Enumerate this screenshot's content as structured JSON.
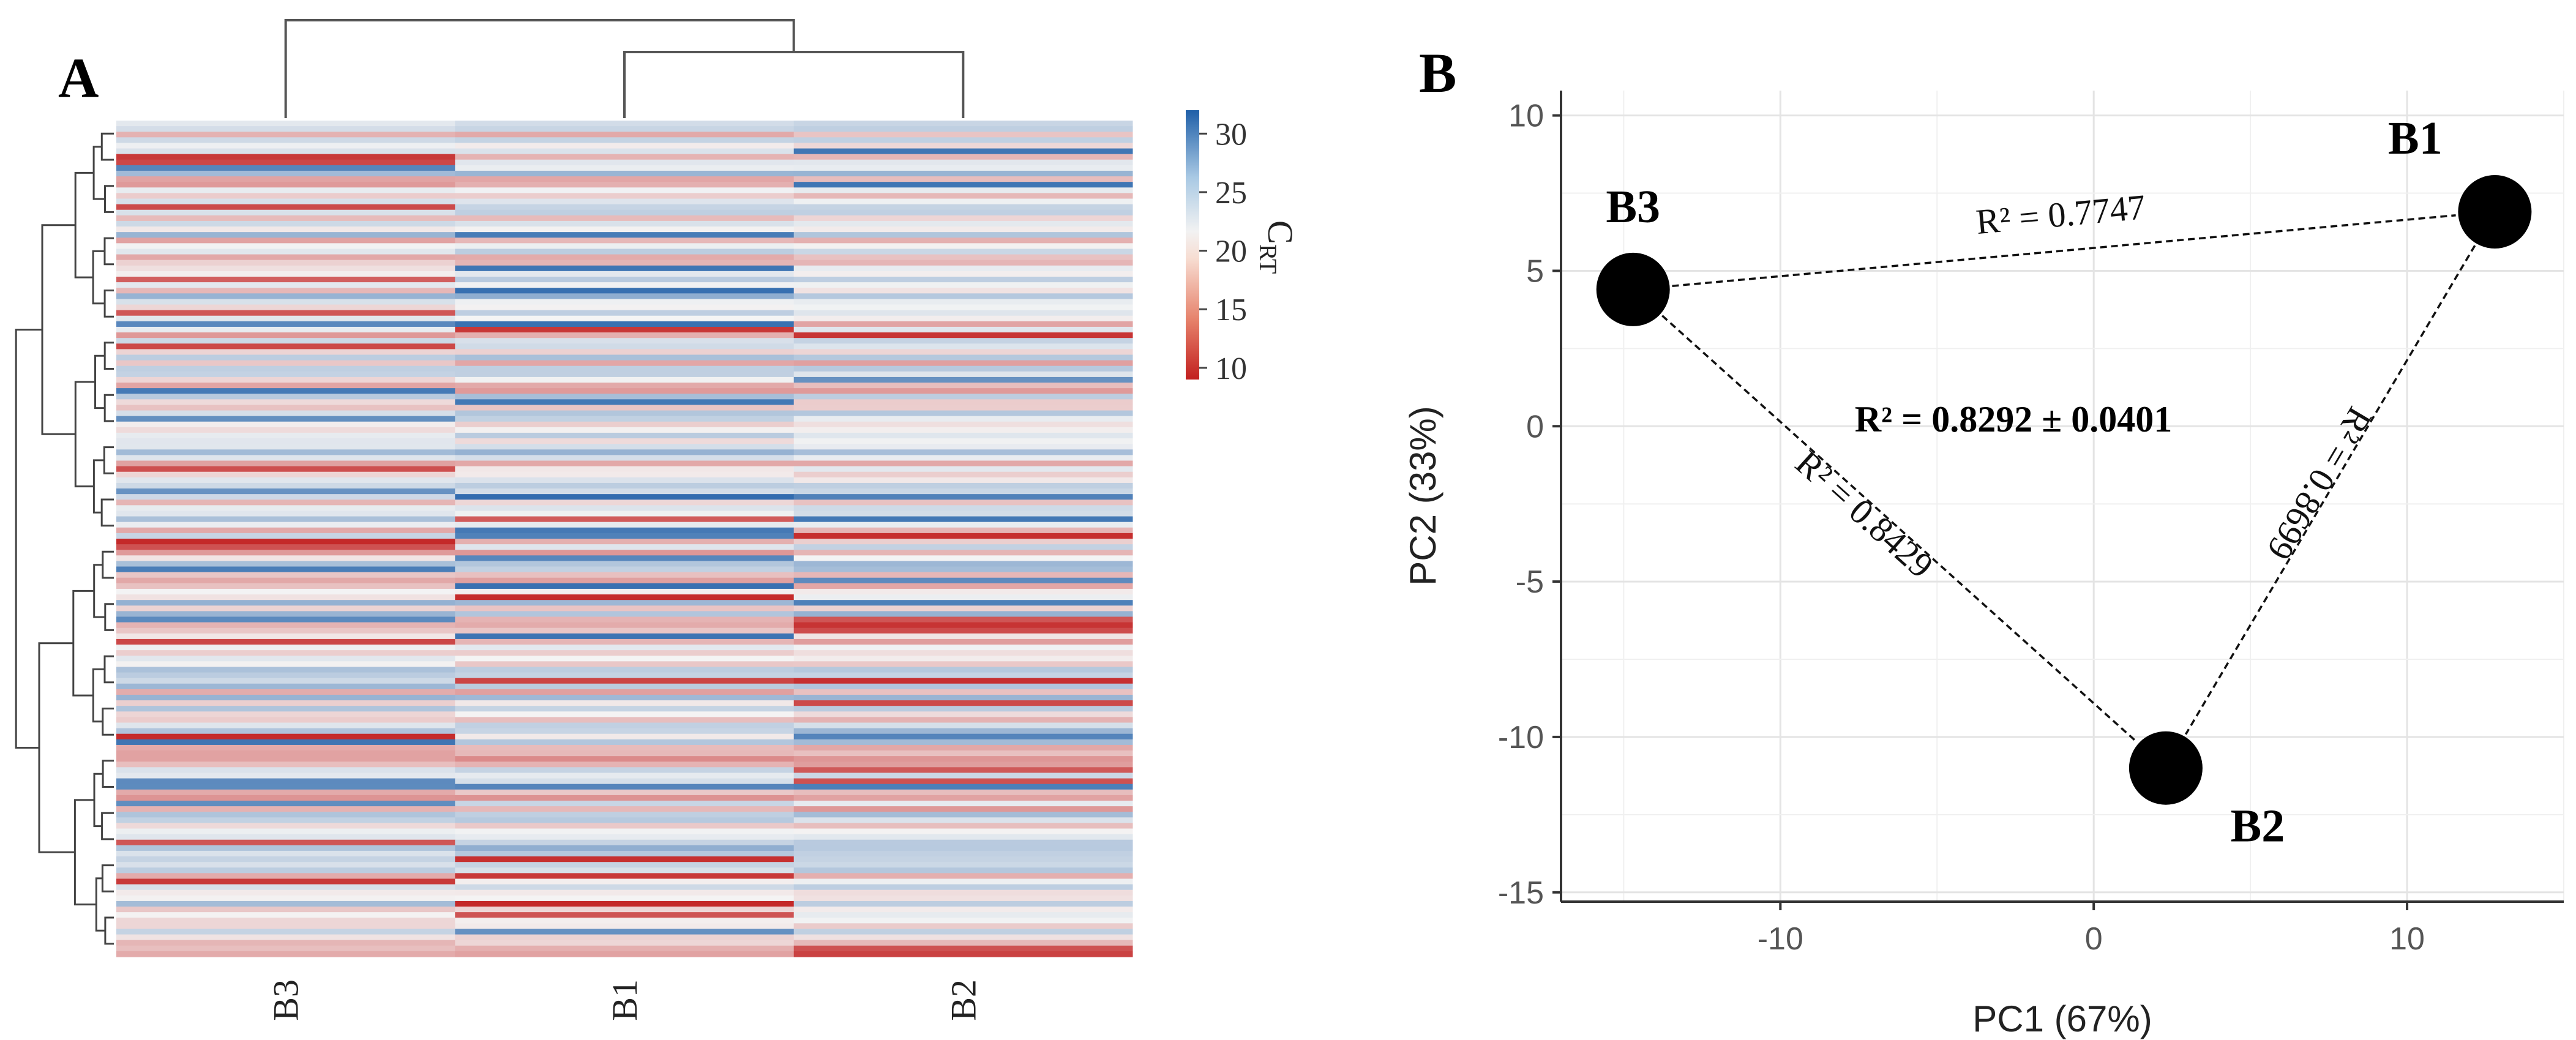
{
  "chart_data": [
    {
      "panel": "A",
      "type": "heatmap",
      "columns": [
        "B3",
        "B1",
        "B2"
      ],
      "column_dendrogram": "B1 and B2 merge first; B3 joins last",
      "colorbar": {
        "label_main": "C",
        "label_sub": "RT",
        "ticks": [
          10,
          15,
          20,
          25,
          30
        ],
        "range": [
          9,
          32
        ],
        "colors": {
          "low": "#c21f1f",
          "mid": "#f4f4f4",
          "high": "#1f5fa8"
        }
      },
      "row_count": 150,
      "value_range_estimate": [
        9,
        32
      ]
    },
    {
      "panel": "B",
      "type": "scatter",
      "xlabel": "PC1 (67%)",
      "ylabel": "PC2 (33%)",
      "xlim": [
        -17,
        15
      ],
      "ylim": [
        -15.3,
        10.8
      ],
      "xticks": [
        -10,
        0,
        10
      ],
      "yticks": [
        10,
        5,
        0,
        -5,
        -10,
        -15
      ],
      "points": [
        {
          "label": "B1",
          "x": 12.8,
          "y": 6.9
        },
        {
          "label": "B2",
          "x": 2.3,
          "y": -11.0
        },
        {
          "label": "B3",
          "x": -14.7,
          "y": 4.4
        }
      ],
      "edges": [
        {
          "from": "B3",
          "to": "B1",
          "label": "R² = 0.7747"
        },
        {
          "from": "B3",
          "to": "B2",
          "label": "R² = 0.8429"
        },
        {
          "from": "B1",
          "to": "B2",
          "label": "R² = 0.8699"
        }
      ],
      "center_annotation": "R² = 0.8292 ± 0.0401",
      "grid": true
    }
  ]
}
